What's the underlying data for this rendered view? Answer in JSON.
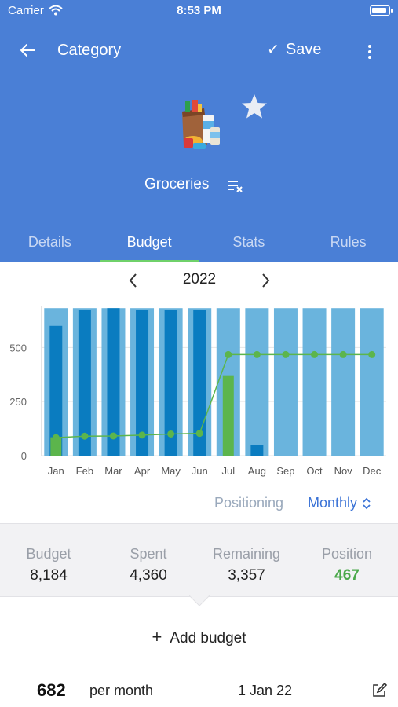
{
  "status_bar": {
    "carrier": "Carrier",
    "time": "8:53 PM"
  },
  "nav": {
    "title": "Category",
    "save_label": "Save"
  },
  "category": {
    "name": "Groceries",
    "icon": "grocery-bag-icon",
    "favorite": true
  },
  "tabs": [
    {
      "label": "Details",
      "active": false
    },
    {
      "label": "Budget",
      "active": true
    },
    {
      "label": "Stats",
      "active": false
    },
    {
      "label": "Rules",
      "active": false
    }
  ],
  "year_selector": {
    "year": "2022"
  },
  "chart_data": {
    "type": "bar",
    "categories": [
      "Jan",
      "Feb",
      "Mar",
      "Apr",
      "May",
      "Jun",
      "Jul",
      "Aug",
      "Sep",
      "Oct",
      "Nov",
      "Dec"
    ],
    "yticks": [
      "0",
      "250",
      "500"
    ],
    "ylim": [
      0,
      690
    ],
    "series": [
      {
        "kind": "budget",
        "values": [
          682,
          682,
          682,
          682,
          682,
          682,
          682,
          682,
          682,
          682,
          682,
          682
        ]
      },
      {
        "kind": "spent",
        "values": [
          600,
          672,
          682,
          675,
          675,
          675,
          0,
          50,
          0,
          0,
          0,
          0
        ]
      },
      {
        "kind": "current",
        "values": [
          85,
          0,
          0,
          0,
          0,
          0,
          368,
          0,
          0,
          0,
          0,
          0
        ]
      },
      {
        "kind": "position",
        "values": [
          83,
          90,
          91,
          95,
          100,
          103,
          467,
          467,
          467,
          467,
          467,
          467
        ]
      }
    ],
    "colors": {
      "budget": "#6ab4dd",
      "spent": "#0a7cc0",
      "current": "#5cb54c",
      "position": "#5cb54c"
    }
  },
  "controls": {
    "positioning_label": "Positioning",
    "period_label": "Monthly"
  },
  "summary": {
    "budget_label": "Budget",
    "budget_value": "8,184",
    "spent_label": "Spent",
    "spent_value": "4,360",
    "remaining_label": "Remaining",
    "remaining_value": "3,357",
    "position_label": "Position",
    "position_value": "467"
  },
  "add_budget": {
    "label": "Add budget"
  },
  "budget_entry": {
    "amount": "682",
    "period": "per month",
    "date": "1 Jan 22"
  },
  "colors": {
    "header_bg": "#4a7fd6",
    "tab_indicator": "#6fd16a",
    "accent": "#3b73d6",
    "position_green": "#4aa84a"
  }
}
